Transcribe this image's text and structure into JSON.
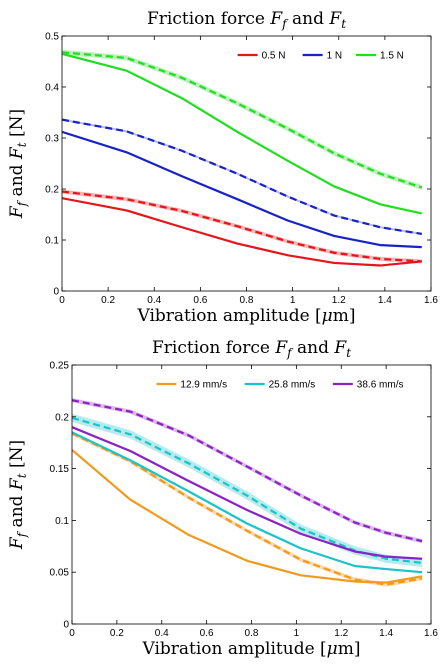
{
  "chart_data": [
    {
      "type": "line",
      "title": "Friction force F_f and F_t",
      "title_parts": [
        "Friction force ",
        "F",
        "f",
        " and ",
        "F",
        "t"
      ],
      "xlabel": "Vibration amplitude [μm]",
      "xlabel_parts": [
        "Vibration amplitude [",
        "μ",
        "m]"
      ],
      "ylabel": "F_f and F_t [N]",
      "ylabel_parts": [
        "F",
        "f",
        " and ",
        "F",
        "t",
        " [N]"
      ],
      "xlim": [
        0,
        1.6
      ],
      "ylim": [
        0,
        0.5
      ],
      "xticks": [
        "0",
        "0.2",
        "0.4",
        "0.6",
        "0.8",
        "1",
        "1.2",
        "1.4",
        "1.6"
      ],
      "yticks": [
        "0",
        "0.1",
        "0.2",
        "0.3",
        "0.4",
        "0.5"
      ],
      "legend_position": "top-right",
      "x": [
        0,
        0.28,
        0.52,
        0.76,
        0.98,
        1.18,
        1.38,
        1.56
      ],
      "series": [
        {
          "name": "0.5 N",
          "color": "#e8141c",
          "band_color": "#f4a0a0",
          "solid": [
            0.182,
            0.158,
            0.125,
            0.093,
            0.07,
            0.055,
            0.05,
            0.058
          ],
          "dashed": [
            0.195,
            0.18,
            0.157,
            0.127,
            0.097,
            0.075,
            0.063,
            0.058
          ],
          "band": 0.004
        },
        {
          "name": "1 N",
          "color": "#1822c8",
          "band_color": "#9aa0e8",
          "solid": [
            0.312,
            0.272,
            0.225,
            0.18,
            0.138,
            0.108,
            0.09,
            0.086
          ],
          "dashed": [
            0.336,
            0.313,
            0.275,
            0.23,
            0.185,
            0.148,
            0.125,
            0.112
          ],
          "band": 0.002
        },
        {
          "name": "1.5 N",
          "color": "#22dd22",
          "band_color": "#a8eca8",
          "solid": [
            0.465,
            0.432,
            0.378,
            0.312,
            0.255,
            0.205,
            0.17,
            0.152
          ],
          "dashed": [
            0.468,
            0.457,
            0.418,
            0.368,
            0.318,
            0.27,
            0.23,
            0.203
          ],
          "band": 0.005
        }
      ]
    },
    {
      "type": "line",
      "title": "Friction force F_f and F_t",
      "title_parts": [
        "Friction force ",
        "F",
        "f",
        " and ",
        "F",
        "t"
      ],
      "xlabel": "Vibration amplitude [μm]",
      "xlabel_parts": [
        "Vibration amplitude [",
        "μ",
        "m]"
      ],
      "ylabel": "F_f and F_t [N]",
      "ylabel_parts": [
        "F",
        "f",
        " and ",
        "F",
        "t",
        " [N]"
      ],
      "xlim": [
        0,
        1.6
      ],
      "ylim": [
        0,
        0.25
      ],
      "xticks": [
        "0",
        "0.2",
        "0.4",
        "0.6",
        "0.8",
        "1",
        "1.2",
        "1.4",
        "1.6"
      ],
      "yticks": [
        "0",
        "0.05",
        "0.1",
        "0.15",
        "0.2",
        "0.25"
      ],
      "legend_position": "top-right",
      "x": [
        0,
        0.26,
        0.52,
        0.78,
        1.02,
        1.26,
        1.4,
        1.56
      ],
      "series": [
        {
          "name": "12.9 mm/s",
          "color": "#f29a1c",
          "band_color": "#f8cf95",
          "solid": [
            0.168,
            0.12,
            0.086,
            0.061,
            0.047,
            0.041,
            0.04,
            0.046
          ],
          "dashed": [
            0.184,
            0.157,
            0.122,
            0.09,
            0.062,
            0.043,
            0.038,
            0.044
          ],
          "band": 0.002
        },
        {
          "name": "25.8 mm/s",
          "color": "#18c4c8",
          "band_color": "#9ee4e8",
          "solid": [
            0.185,
            0.158,
            0.128,
            0.097,
            0.073,
            0.056,
            0.053,
            0.05
          ],
          "dashed": [
            0.199,
            0.183,
            0.155,
            0.124,
            0.092,
            0.071,
            0.063,
            0.059
          ],
          "band": 0.004
        },
        {
          "name": "38.6 mm/s",
          "color": "#8a22c4",
          "band_color": "#cfa3e4",
          "solid": [
            0.19,
            0.167,
            0.138,
            0.11,
            0.087,
            0.07,
            0.065,
            0.063
          ],
          "dashed": [
            0.216,
            0.205,
            0.182,
            0.152,
            0.124,
            0.098,
            0.088,
            0.08
          ],
          "band": 0.002
        }
      ]
    }
  ]
}
